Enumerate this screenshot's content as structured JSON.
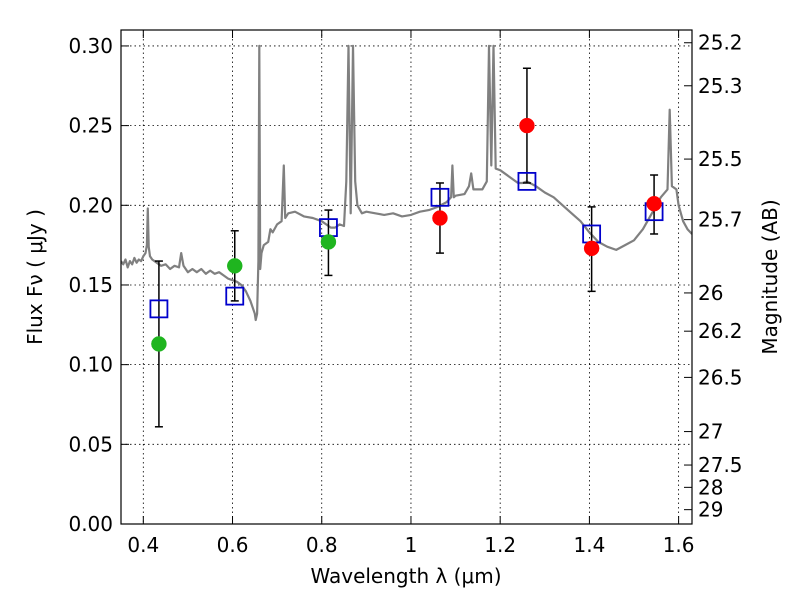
{
  "chart_data": {
    "type": "scatter",
    "xlabel": "Wavelength  λ (μm)",
    "ylabel": "Flux  Fν  ( μJy )",
    "ylabel_right": "Magnitude (AB)",
    "xlim": [
      0.35,
      1.63
    ],
    "ylim": [
      0.0,
      0.31
    ],
    "grid": true,
    "x_ticks": [
      0.4,
      0.6,
      0.8,
      1.0,
      1.2,
      1.4,
      1.6
    ],
    "x_tick_labels": [
      "0.4",
      "0.6",
      "0.8",
      "1",
      "1.2",
      "1.4",
      "1.6"
    ],
    "y_ticks": [
      0.0,
      0.05,
      0.1,
      0.15,
      0.2,
      0.25,
      0.3
    ],
    "y_tick_labels": [
      "0.00",
      "0.05",
      "0.10",
      "0.15",
      "0.20",
      "0.25",
      "0.30"
    ],
    "right_ticks": [
      {
        "flux": 0.302,
        "label": "25.2"
      },
      {
        "flux": 0.275,
        "label": "25.3"
      },
      {
        "flux": 0.229,
        "label": "25.5"
      },
      {
        "flux": 0.191,
        "label": "25.7"
      },
      {
        "flux": 0.145,
        "label": "26"
      },
      {
        "flux": 0.121,
        "label": "26.2"
      },
      {
        "flux": 0.092,
        "label": "26.5"
      },
      {
        "flux": 0.058,
        "label": "27"
      },
      {
        "flux": 0.037,
        "label": "27.5"
      },
      {
        "flux": 0.023,
        "label": "28"
      },
      {
        "flux": 0.009,
        "label": "29"
      }
    ],
    "model_spectrum": {
      "color": "#808080",
      "points": [
        [
          0.35,
          0.165
        ],
        [
          0.355,
          0.163
        ],
        [
          0.36,
          0.166
        ],
        [
          0.365,
          0.161
        ],
        [
          0.37,
          0.165
        ],
        [
          0.375,
          0.163
        ],
        [
          0.38,
          0.167
        ],
        [
          0.385,
          0.164
        ],
        [
          0.39,
          0.166
        ],
        [
          0.395,
          0.165
        ],
        [
          0.4,
          0.168
        ],
        [
          0.405,
          0.17
        ],
        [
          0.408,
          0.175
        ],
        [
          0.41,
          0.198
        ],
        [
          0.412,
          0.174
        ],
        [
          0.415,
          0.168
        ],
        [
          0.42,
          0.166
        ],
        [
          0.43,
          0.164
        ],
        [
          0.44,
          0.162
        ],
        [
          0.45,
          0.163
        ],
        [
          0.46,
          0.16
        ],
        [
          0.47,
          0.162
        ],
        [
          0.48,
          0.161
        ],
        [
          0.485,
          0.17
        ],
        [
          0.49,
          0.162
        ],
        [
          0.5,
          0.158
        ],
        [
          0.51,
          0.16
        ],
        [
          0.52,
          0.158
        ],
        [
          0.53,
          0.16
        ],
        [
          0.54,
          0.157
        ],
        [
          0.55,
          0.159
        ],
        [
          0.56,
          0.157
        ],
        [
          0.57,
          0.158
        ],
        [
          0.58,
          0.156
        ],
        [
          0.59,
          0.154
        ],
        [
          0.6,
          0.153
        ],
        [
          0.61,
          0.152
        ],
        [
          0.62,
          0.15
        ],
        [
          0.63,
          0.146
        ],
        [
          0.64,
          0.14
        ],
        [
          0.65,
          0.132
        ],
        [
          0.652,
          0.128
        ],
        [
          0.655,
          0.132
        ],
        [
          0.658,
          0.165
        ],
        [
          0.66,
          0.3
        ],
        [
          0.662,
          0.16
        ],
        [
          0.665,
          0.17
        ],
        [
          0.67,
          0.175
        ],
        [
          0.68,
          0.177
        ],
        [
          0.685,
          0.185
        ],
        [
          0.69,
          0.183
        ],
        [
          0.7,
          0.188
        ],
        [
          0.71,
          0.19
        ],
        [
          0.715,
          0.225
        ],
        [
          0.718,
          0.192
        ],
        [
          0.725,
          0.195
        ],
        [
          0.74,
          0.196
        ],
        [
          0.76,
          0.193
        ],
        [
          0.78,
          0.192
        ],
        [
          0.8,
          0.19
        ],
        [
          0.81,
          0.188
        ],
        [
          0.82,
          0.186
        ],
        [
          0.83,
          0.186
        ],
        [
          0.84,
          0.188
        ],
        [
          0.85,
          0.187
        ],
        [
          0.855,
          0.215
        ],
        [
          0.86,
          0.3
        ],
        [
          0.865,
          0.195
        ],
        [
          0.87,
          0.3
        ],
        [
          0.875,
          0.215
        ],
        [
          0.88,
          0.2
        ],
        [
          0.89,
          0.195
        ],
        [
          0.9,
          0.196
        ],
        [
          0.92,
          0.195
        ],
        [
          0.94,
          0.194
        ],
        [
          0.96,
          0.195
        ],
        [
          0.98,
          0.193
        ],
        [
          1.0,
          0.194
        ],
        [
          1.02,
          0.196
        ],
        [
          1.04,
          0.197
        ],
        [
          1.06,
          0.199
        ],
        [
          1.08,
          0.202
        ],
        [
          1.09,
          0.205
        ],
        [
          1.093,
          0.225
        ],
        [
          1.096,
          0.205
        ],
        [
          1.1,
          0.206
        ],
        [
          1.12,
          0.207
        ],
        [
          1.13,
          0.212
        ],
        [
          1.135,
          0.22
        ],
        [
          1.14,
          0.21
        ],
        [
          1.16,
          0.21
        ],
        [
          1.17,
          0.215
        ],
        [
          1.175,
          0.3
        ],
        [
          1.18,
          0.225
        ],
        [
          1.185,
          0.3
        ],
        [
          1.19,
          0.223
        ],
        [
          1.2,
          0.222
        ],
        [
          1.22,
          0.218
        ],
        [
          1.24,
          0.214
        ],
        [
          1.25,
          0.214
        ],
        [
          1.26,
          0.215
        ],
        [
          1.28,
          0.212
        ],
        [
          1.3,
          0.208
        ],
        [
          1.32,
          0.205
        ],
        [
          1.34,
          0.2
        ],
        [
          1.36,
          0.195
        ],
        [
          1.38,
          0.19
        ],
        [
          1.4,
          0.183
        ],
        [
          1.42,
          0.177
        ],
        [
          1.44,
          0.174
        ],
        [
          1.46,
          0.172
        ],
        [
          1.48,
          0.175
        ],
        [
          1.5,
          0.178
        ],
        [
          1.52,
          0.185
        ],
        [
          1.54,
          0.195
        ],
        [
          1.56,
          0.205
        ],
        [
          1.575,
          0.21
        ],
        [
          1.58,
          0.26
        ],
        [
          1.585,
          0.212
        ],
        [
          1.595,
          0.21
        ],
        [
          1.6,
          0.2
        ],
        [
          1.61,
          0.19
        ],
        [
          1.62,
          0.185
        ],
        [
          1.63,
          0.182
        ]
      ]
    },
    "series": [
      {
        "marker": "square",
        "color": "#0000cc",
        "x": [
          0.435,
          0.605,
          0.815,
          1.065,
          1.26,
          1.405,
          1.545
        ],
        "y": [
          0.135,
          0.143,
          0.186,
          0.205,
          0.215,
          0.182,
          0.196
        ]
      },
      {
        "marker": "circle",
        "color": "#1fb51f",
        "x": [
          0.435,
          0.605,
          0.815
        ],
        "y": [
          0.113,
          0.162,
          0.177
        ],
        "err_low": [
          0.061,
          0.14,
          0.156
        ],
        "err_high": [
          0.165,
          0.184,
          0.197
        ]
      },
      {
        "marker": "circle",
        "color": "#ff0000",
        "x": [
          1.065,
          1.26,
          1.405,
          1.545
        ],
        "y": [
          0.192,
          0.25,
          0.173,
          0.201
        ],
        "err_low": [
          0.17,
          0.214,
          0.146,
          0.182
        ],
        "err_high": [
          0.214,
          0.286,
          0.199,
          0.219
        ]
      }
    ]
  }
}
